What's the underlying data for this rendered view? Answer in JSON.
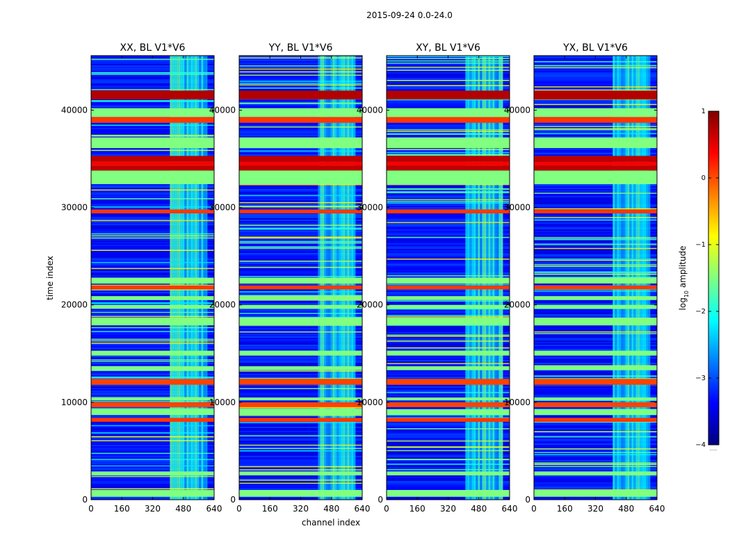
{
  "figure": {
    "suptitle": "2015-09-24 0.0-24.0",
    "xlabel": "channel index",
    "ylabel": "time index",
    "colorbar_label": "log10 amplitude",
    "colorbar_label_base": "log",
    "colorbar_label_sub": "10",
    "colorbar_label_rest": " amplitude",
    "colorbar_footnote": "......"
  },
  "colormap": {
    "name": "jet",
    "range": [
      -4,
      1
    ],
    "ticks": [
      -4,
      -3,
      -2,
      -1,
      0,
      1
    ],
    "tick_labels": [
      "−4",
      "−3",
      "−2",
      "−1",
      "0",
      "1"
    ],
    "stops": [
      "#00007f",
      "#0000ff",
      "#007fff",
      "#00ffff",
      "#7fff7f",
      "#ffff00",
      "#ff7f00",
      "#ff0000",
      "#7f0000"
    ]
  },
  "chart_data": [
    {
      "type": "heatmap",
      "title": "XX, BL V1*V6",
      "xlim": [
        0,
        640
      ],
      "ylim": [
        0,
        45600
      ],
      "xticks": [
        0,
        160,
        320,
        480,
        640
      ],
      "yticks": [
        0,
        10000,
        20000,
        30000,
        40000
      ]
    },
    {
      "type": "heatmap",
      "title": "YY, BL V1*V6",
      "xlim": [
        0,
        640
      ],
      "ylim": [
        0,
        45600
      ],
      "xticks": [
        0,
        160,
        320,
        480,
        640
      ],
      "yticks": [
        0,
        10000,
        20000,
        30000,
        40000
      ]
    },
    {
      "type": "heatmap",
      "title": "XY, BL V1*V6",
      "xlim": [
        0,
        640
      ],
      "ylim": [
        0,
        45600
      ],
      "xticks": [
        0,
        160,
        320,
        480,
        640
      ],
      "yticks": [
        0,
        10000,
        20000,
        30000,
        40000
      ]
    },
    {
      "type": "heatmap",
      "title": "YX, BL V1*V6",
      "xlim": [
        0,
        640
      ],
      "ylim": [
        0,
        45600
      ],
      "xticks": [
        0,
        160,
        320,
        480,
        640
      ],
      "yticks": [
        0,
        10000,
        20000,
        30000,
        40000
      ]
    }
  ],
  "heatmap_structure": {
    "background_level": -3.3,
    "bright_channel_band": {
      "channels": [
        410,
        600
      ],
      "level": -2.2
    },
    "flagged_time_bands": [
      {
        "from": 300,
        "to": 1000,
        "level": -1.5
      },
      {
        "from": 2500,
        "to": 2900,
        "level": -1.5
      },
      {
        "from": 8000,
        "to": 8400,
        "level": 0.1
      },
      {
        "from": 8700,
        "to": 9300,
        "level": -1.5
      },
      {
        "from": 9500,
        "to": 10000,
        "level": 0.05
      },
      {
        "from": 10200,
        "to": 10500,
        "level": -1.5
      },
      {
        "from": 11800,
        "to": 12400,
        "level": 0.05
      },
      {
        "from": 13300,
        "to": 13700,
        "level": -1.5
      },
      {
        "from": 14800,
        "to": 15300,
        "level": -1.5
      },
      {
        "from": 17900,
        "to": 18700,
        "level": -1.5
      },
      {
        "from": 19600,
        "to": 20000,
        "level": -1.5
      },
      {
        "from": 20500,
        "to": 20900,
        "level": -1.5
      },
      {
        "from": 21600,
        "to": 22000,
        "level": 0.1
      },
      {
        "from": 22200,
        "to": 22800,
        "level": -1.5
      },
      {
        "from": 29400,
        "to": 29800,
        "level": 0.1
      },
      {
        "from": 32400,
        "to": 33800,
        "level": -1.5
      },
      {
        "from": 33800,
        "to": 34300,
        "level": 0.7
      },
      {
        "from": 34300,
        "to": 34700,
        "level": 0.4
      },
      {
        "from": 34700,
        "to": 35300,
        "level": 0.7
      },
      {
        "from": 36100,
        "to": 37200,
        "level": -1.5
      },
      {
        "from": 38700,
        "to": 39300,
        "level": 0.1
      },
      {
        "from": 39300,
        "to": 40200,
        "level": -1.5
      },
      {
        "from": 41100,
        "to": 42000,
        "level": 0.75
      }
    ]
  }
}
